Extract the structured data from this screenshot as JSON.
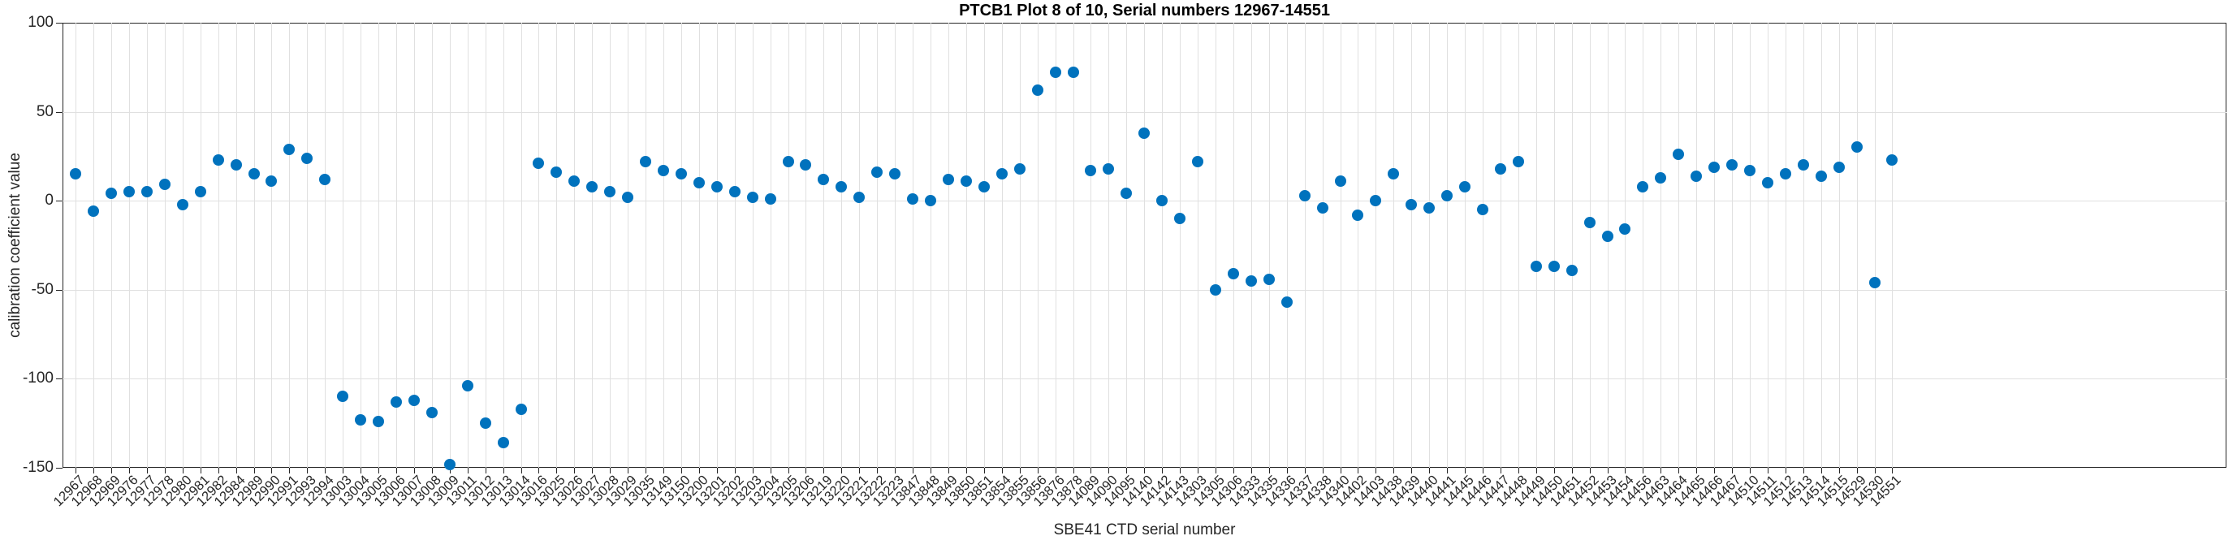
{
  "title": "PTCB1 Plot 8 of 10, Serial numbers 12967-14551",
  "axes": {
    "xlabel": "SBE41 CTD serial number",
    "ylabel": "calibration coefficient value",
    "ytick_labels": [
      "100",
      "50",
      "0",
      "-50",
      "-100",
      "-150"
    ]
  },
  "style": {
    "marker_color": "#0072BD",
    "grid_color": "#e0e0e0",
    "axis_color": "#262626",
    "background": "#ffffff"
  },
  "chart_data": {
    "type": "scatter",
    "title": "PTCB1 Plot 8 of 10, Serial numbers 12967-14551",
    "xlabel": "SBE41 CTD serial number",
    "ylabel": "calibration coefficient value",
    "ylim": [
      -150,
      100
    ],
    "yticks": [
      100,
      50,
      0,
      -50,
      -100,
      -150
    ],
    "grid": true,
    "legend": "none",
    "x": [
      "12967",
      "12968",
      "12969",
      "12976",
      "12977",
      "12978",
      "12980",
      "12981",
      "12982",
      "12984",
      "12989",
      "12990",
      "12991",
      "12993",
      "12994",
      "13003",
      "13004",
      "13005",
      "13006",
      "13007",
      "13008",
      "13009",
      "13011",
      "13012",
      "13013",
      "13014",
      "13016",
      "13025",
      "13026",
      "13027",
      "13028",
      "13029",
      "13035",
      "13149",
      "13150",
      "13200",
      "13201",
      "13202",
      "13203",
      "13204",
      "13205",
      "13206",
      "13219",
      "13220",
      "13221",
      "13222",
      "13223",
      "13847",
      "13848",
      "13849",
      "13850",
      "13851",
      "13854",
      "13855",
      "13856",
      "13876",
      "13878",
      "14089",
      "14090",
      "14095",
      "14140",
      "14142",
      "14143",
      "14303",
      "14305",
      "14306",
      "14333",
      "14335",
      "14336",
      "14337",
      "14338",
      "14340",
      "14402",
      "14403",
      "14438",
      "14439",
      "14440",
      "14441",
      "14445",
      "14446",
      "14447",
      "14448",
      "14449",
      "14450",
      "14451",
      "14452",
      "14453",
      "14454",
      "14456",
      "14463",
      "14464",
      "14465",
      "14466",
      "14467",
      "14510",
      "14511",
      "14512",
      "14513",
      "14514",
      "14515",
      "14529",
      "14530",
      "14551"
    ],
    "y": [
      15,
      -6,
      4,
      5,
      5,
      9,
      -2,
      5,
      23,
      20,
      15,
      11,
      29,
      24,
      12,
      -110,
      -123,
      -124,
      -113,
      -112,
      -119,
      -148,
      -104,
      -125,
      -136,
      -117,
      21,
      16,
      11,
      8,
      5,
      2,
      22,
      17,
      15,
      10,
      8,
      5,
      2,
      1,
      22,
      20,
      12,
      8,
      2,
      16,
      15,
      1,
      0,
      12,
      11,
      8,
      15,
      18,
      62,
      72,
      72,
      17,
      18,
      4,
      38,
      0,
      -10,
      22,
      -50,
      -41,
      -45,
      -44,
      -57,
      3,
      -4,
      11,
      -8,
      0,
      15,
      -2,
      -4,
      3,
      8,
      -5,
      18,
      22,
      -37,
      -37,
      -39,
      -12,
      -20,
      -16,
      8,
      13,
      26,
      14,
      19,
      20,
      17,
      10,
      15,
      20,
      14,
      19,
      30,
      -46,
      23
    ]
  }
}
